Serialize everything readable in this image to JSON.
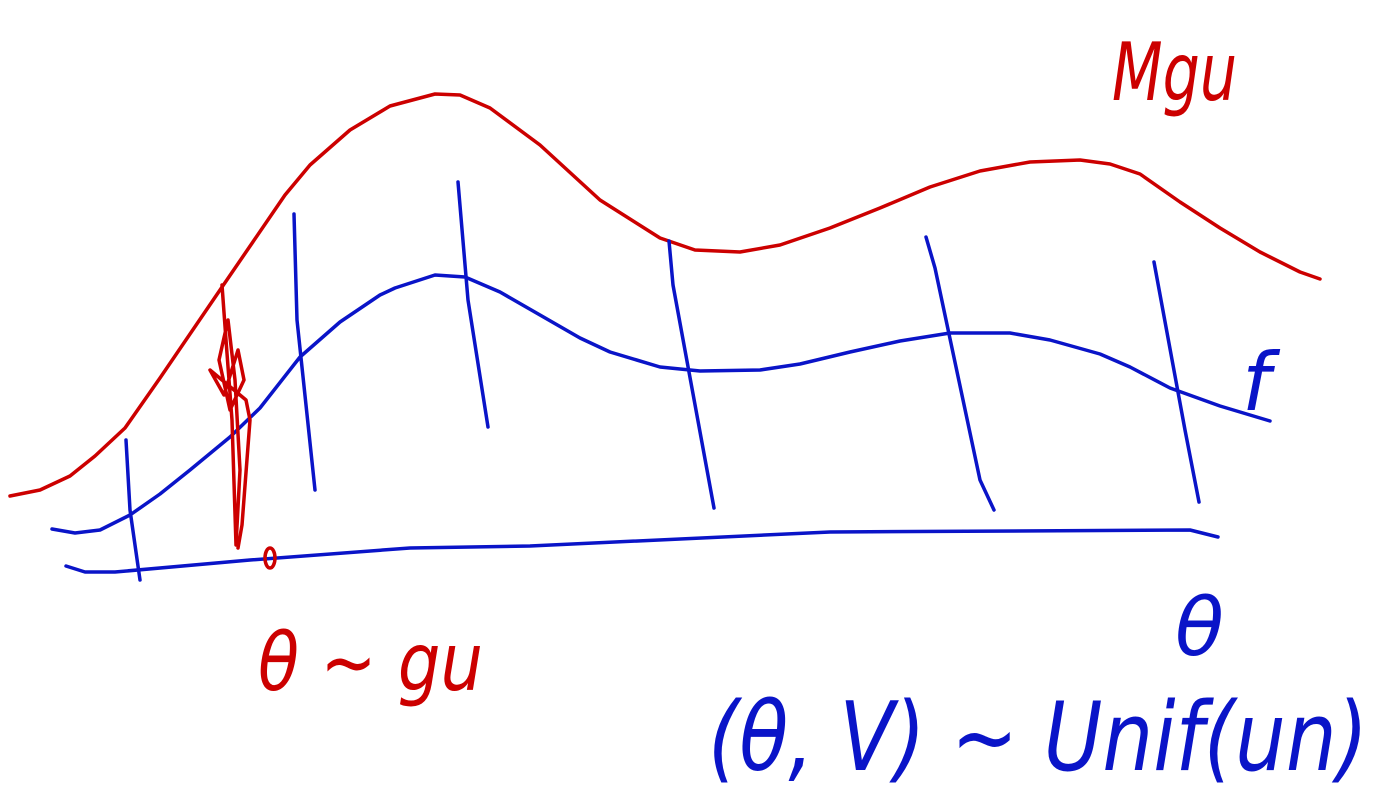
{
  "labels": {
    "top_right": "Mgu",
    "curve": "f",
    "sample": "θ ~ gu",
    "axis": "θ",
    "bottom": "(θ, V) ~ Unif(un)"
  }
}
